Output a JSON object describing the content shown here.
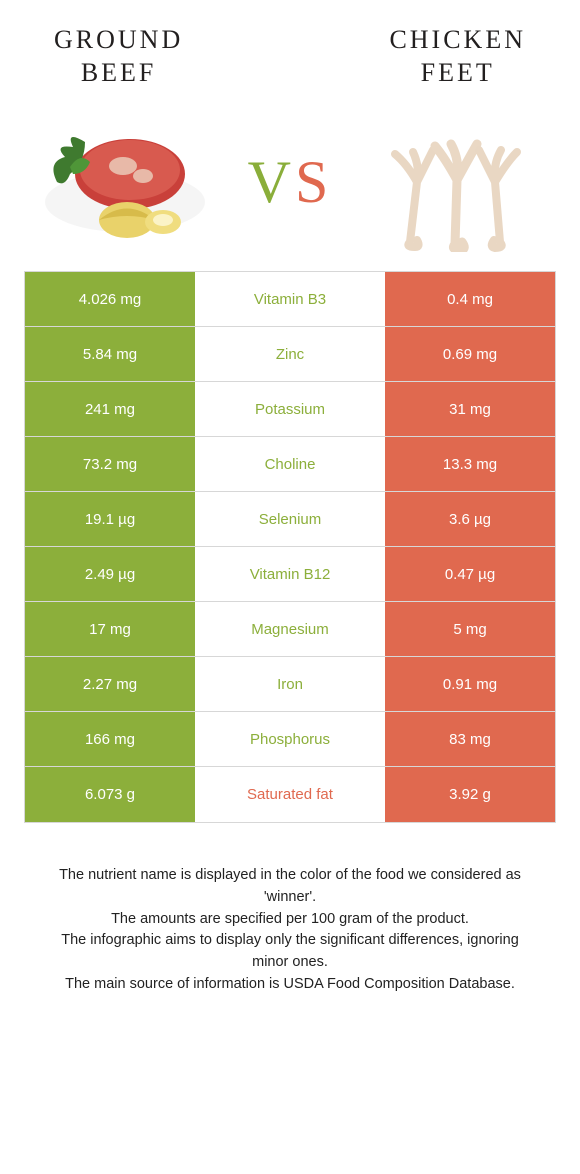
{
  "colors": {
    "green": "#8caf3b",
    "orange": "#e0694f",
    "text": "#221f1f",
    "border": "#d7d7d7",
    "background": "#ffffff"
  },
  "header": {
    "left_food_line1": "GROUND",
    "left_food_line2": "BEEF",
    "right_food_line1": "CHICKEN",
    "right_food_line2": "FEET",
    "vs_v": "V",
    "vs_s": "S"
  },
  "table": {
    "left_color": "green",
    "right_color": "orange",
    "rows": [
      {
        "left": "4.026 mg",
        "label": "Vitamin B3",
        "winner": "green",
        "right": "0.4 mg"
      },
      {
        "left": "5.84 mg",
        "label": "Zinc",
        "winner": "green",
        "right": "0.69 mg"
      },
      {
        "left": "241 mg",
        "label": "Potassium",
        "winner": "green",
        "right": "31 mg"
      },
      {
        "left": "73.2 mg",
        "label": "Choline",
        "winner": "green",
        "right": "13.3 mg"
      },
      {
        "left": "19.1 µg",
        "label": "Selenium",
        "winner": "green",
        "right": "3.6 µg"
      },
      {
        "left": "2.49 µg",
        "label": "Vitamin B12",
        "winner": "green",
        "right": "0.47 µg"
      },
      {
        "left": "17 mg",
        "label": "Magnesium",
        "winner": "green",
        "right": "5 mg"
      },
      {
        "left": "2.27 mg",
        "label": "Iron",
        "winner": "green",
        "right": "0.91 mg"
      },
      {
        "left": "166 mg",
        "label": "Phosphorus",
        "winner": "green",
        "right": "83 mg"
      },
      {
        "left": "6.073 g",
        "label": "Saturated fat",
        "winner": "orange",
        "right": "3.92 g"
      }
    ]
  },
  "footer": {
    "line1": "The nutrient name is displayed in the color of the food we considered as 'winner'.",
    "line2": "The amounts are specified per 100 gram of the product.",
    "line3": "The infographic aims to display only the significant differences, ignoring minor ones.",
    "line4": "The main source of information is USDA Food Composition Database."
  }
}
